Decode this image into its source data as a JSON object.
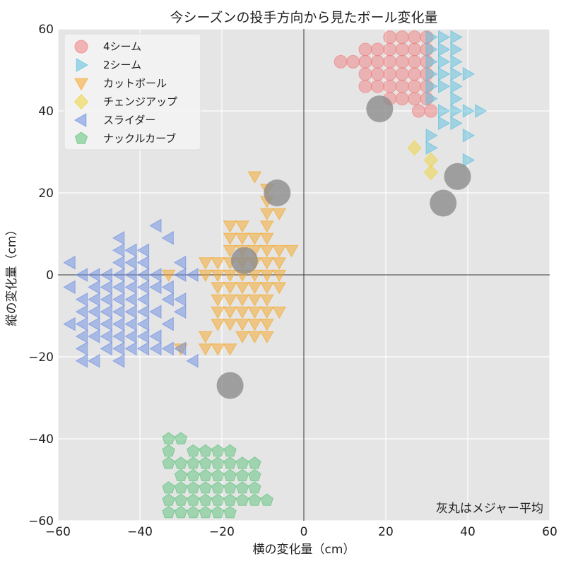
{
  "chart_data": {
    "type": "scatter",
    "title": "今シーズンの投手方向から見たボール変化量",
    "xlabel": "横の変化量（cm）",
    "ylabel": "縦の変化量（cm）",
    "xlim": [
      -60,
      60
    ],
    "ylim": [
      -60,
      60
    ],
    "xticks": [
      "−60",
      "−40",
      "−20",
      "0",
      "20",
      "40",
      "60"
    ],
    "yticks": [
      "60",
      "40",
      "20",
      "0",
      "−20",
      "−40",
      "−60"
    ],
    "grid": true,
    "legend_position": "top-left",
    "annotation": "灰丸はメジャー平均",
    "colors": {
      "background": "#e5e5e5",
      "grid": "#ffffff",
      "axis_line": "#333333",
      "average": "#8c8c8c"
    },
    "series": [
      {
        "name": "4シーム",
        "marker": "circle",
        "color": "#f08080",
        "points": [
          [
            21,
            58
          ],
          [
            24,
            58
          ],
          [
            27,
            58
          ],
          [
            30,
            58
          ],
          [
            15,
            55
          ],
          [
            18,
            55
          ],
          [
            21,
            55
          ],
          [
            24,
            55
          ],
          [
            27,
            55
          ],
          [
            30,
            55
          ],
          [
            9,
            52
          ],
          [
            12,
            52
          ],
          [
            15,
            52
          ],
          [
            18,
            52
          ],
          [
            21,
            52
          ],
          [
            24,
            52
          ],
          [
            27,
            52
          ],
          [
            30,
            52
          ],
          [
            15,
            49
          ],
          [
            18,
            49
          ],
          [
            21,
            49
          ],
          [
            24,
            49
          ],
          [
            27,
            49
          ],
          [
            30,
            49
          ],
          [
            15,
            46
          ],
          [
            18,
            46
          ],
          [
            21,
            46
          ],
          [
            24,
            46
          ],
          [
            27,
            46
          ],
          [
            30,
            46
          ],
          [
            21,
            43
          ],
          [
            24,
            43
          ],
          [
            27,
            43
          ],
          [
            30,
            43
          ],
          [
            28,
            40
          ],
          [
            31,
            40
          ]
        ]
      },
      {
        "name": "2シーム",
        "marker": "triangle-right",
        "color": "#5bc0de",
        "points": [
          [
            31,
            58
          ],
          [
            34,
            58
          ],
          [
            37,
            58
          ],
          [
            31,
            55
          ],
          [
            34,
            55
          ],
          [
            37,
            55
          ],
          [
            31,
            52
          ],
          [
            34,
            52
          ],
          [
            37,
            52
          ],
          [
            31,
            49
          ],
          [
            34,
            49
          ],
          [
            37,
            49
          ],
          [
            40,
            49
          ],
          [
            31,
            46
          ],
          [
            34,
            46
          ],
          [
            37,
            46
          ],
          [
            31,
            43
          ],
          [
            37,
            43
          ],
          [
            34,
            40
          ],
          [
            37,
            40
          ],
          [
            40,
            40
          ],
          [
            43,
            40
          ],
          [
            34,
            37
          ],
          [
            37,
            37
          ],
          [
            31,
            34
          ],
          [
            40,
            34
          ],
          [
            31,
            31
          ],
          [
            40,
            28
          ]
        ]
      },
      {
        "name": "カットボール",
        "marker": "triangle-down",
        "color": "#f5a623",
        "points": [
          [
            -12,
            24
          ],
          [
            -9,
            21
          ],
          [
            -9,
            18
          ],
          [
            -9,
            15
          ],
          [
            -6,
            15
          ],
          [
            -18,
            12
          ],
          [
            -15,
            12
          ],
          [
            -9,
            12
          ],
          [
            -18,
            9
          ],
          [
            -15,
            9
          ],
          [
            -12,
            9
          ],
          [
            -9,
            9
          ],
          [
            -18,
            6
          ],
          [
            -15,
            6
          ],
          [
            -12,
            6
          ],
          [
            -9,
            6
          ],
          [
            -6,
            6
          ],
          [
            -3,
            6
          ],
          [
            -24,
            3
          ],
          [
            -21,
            3
          ],
          [
            -18,
            3
          ],
          [
            -15,
            3
          ],
          [
            -12,
            3
          ],
          [
            -9,
            3
          ],
          [
            -6,
            3
          ],
          [
            -24,
            0
          ],
          [
            -21,
            0
          ],
          [
            -18,
            0
          ],
          [
            -15,
            0
          ],
          [
            -12,
            0
          ],
          [
            -9,
            0
          ],
          [
            -6,
            0
          ],
          [
            -21,
            -3
          ],
          [
            -18,
            -3
          ],
          [
            -15,
            -3
          ],
          [
            -12,
            -3
          ],
          [
            -9,
            -3
          ],
          [
            -6,
            -3
          ],
          [
            -21,
            -6
          ],
          [
            -18,
            -6
          ],
          [
            -15,
            -6
          ],
          [
            -12,
            -6
          ],
          [
            -9,
            -6
          ],
          [
            -21,
            -9
          ],
          [
            -18,
            -9
          ],
          [
            -15,
            -9
          ],
          [
            -12,
            -9
          ],
          [
            -9,
            -9
          ],
          [
            -6,
            -9
          ],
          [
            -21,
            -12
          ],
          [
            -18,
            -12
          ],
          [
            -15,
            -12
          ],
          [
            -12,
            -12
          ],
          [
            -9,
            -12
          ],
          [
            -15,
            -15
          ],
          [
            -12,
            -15
          ],
          [
            -9,
            -15
          ],
          [
            -24,
            -15
          ],
          [
            -24,
            -18
          ],
          [
            -21,
            -18
          ],
          [
            -18,
            -18
          ],
          [
            -33,
            0
          ],
          [
            -30,
            -18
          ]
        ]
      },
      {
        "name": "チェンジアップ",
        "marker": "diamond",
        "color": "#f0d43a",
        "points": [
          [
            27,
            31
          ],
          [
            31,
            28
          ],
          [
            31,
            25
          ]
        ]
      },
      {
        "name": "スライダー",
        "marker": "triangle-left",
        "color": "#6b8de3",
        "points": [
          [
            -36,
            12
          ],
          [
            -33,
            9
          ],
          [
            -45,
            9
          ],
          [
            -45,
            6
          ],
          [
            -42,
            6
          ],
          [
            -39,
            6
          ],
          [
            -45,
            3
          ],
          [
            -42,
            3
          ],
          [
            -39,
            3
          ],
          [
            -30,
            3
          ],
          [
            -57,
            3
          ],
          [
            -54,
            0
          ],
          [
            -51,
            0
          ],
          [
            -48,
            0
          ],
          [
            -45,
            0
          ],
          [
            -42,
            0
          ],
          [
            -39,
            0
          ],
          [
            -36,
            0
          ],
          [
            -30,
            0
          ],
          [
            -27,
            0
          ],
          [
            -57,
            -3
          ],
          [
            -51,
            -3
          ],
          [
            -48,
            -3
          ],
          [
            -45,
            -3
          ],
          [
            -42,
            -3
          ],
          [
            -39,
            -3
          ],
          [
            -36,
            -3
          ],
          [
            -33,
            -3
          ],
          [
            -54,
            -6
          ],
          [
            -51,
            -6
          ],
          [
            -48,
            -6
          ],
          [
            -45,
            -6
          ],
          [
            -42,
            -6
          ],
          [
            -39,
            -6
          ],
          [
            -33,
            -6
          ],
          [
            -30,
            -6
          ],
          [
            -54,
            -9
          ],
          [
            -51,
            -9
          ],
          [
            -48,
            -9
          ],
          [
            -45,
            -9
          ],
          [
            -42,
            -9
          ],
          [
            -39,
            -9
          ],
          [
            -36,
            -9
          ],
          [
            -30,
            -9
          ],
          [
            -57,
            -12
          ],
          [
            -54,
            -12
          ],
          [
            -51,
            -12
          ],
          [
            -48,
            -12
          ],
          [
            -45,
            -12
          ],
          [
            -42,
            -12
          ],
          [
            -39,
            -12
          ],
          [
            -33,
            -12
          ],
          [
            -54,
            -15
          ],
          [
            -51,
            -15
          ],
          [
            -48,
            -15
          ],
          [
            -45,
            -15
          ],
          [
            -42,
            -15
          ],
          [
            -39,
            -15
          ],
          [
            -36,
            -15
          ],
          [
            -54,
            -18
          ],
          [
            -48,
            -18
          ],
          [
            -45,
            -18
          ],
          [
            -42,
            -18
          ],
          [
            -39,
            -18
          ],
          [
            -36,
            -18
          ],
          [
            -33,
            -18
          ],
          [
            -30,
            -18
          ],
          [
            -54,
            -21
          ],
          [
            -51,
            -21
          ],
          [
            -45,
            -21
          ],
          [
            -27,
            -21
          ]
        ]
      },
      {
        "name": "ナックルカーブ",
        "marker": "pentagon",
        "color": "#5cc27a",
        "points": [
          [
            -33,
            -40
          ],
          [
            -30,
            -40
          ],
          [
            -33,
            -43
          ],
          [
            -27,
            -43
          ],
          [
            -24,
            -43
          ],
          [
            -21,
            -43
          ],
          [
            -18,
            -43
          ],
          [
            -33,
            -46
          ],
          [
            -30,
            -46
          ],
          [
            -27,
            -46
          ],
          [
            -24,
            -46
          ],
          [
            -21,
            -46
          ],
          [
            -18,
            -46
          ],
          [
            -15,
            -46
          ],
          [
            -12,
            -46
          ],
          [
            -30,
            -49
          ],
          [
            -27,
            -49
          ],
          [
            -24,
            -49
          ],
          [
            -21,
            -49
          ],
          [
            -18,
            -49
          ],
          [
            -15,
            -49
          ],
          [
            -12,
            -49
          ],
          [
            -33,
            -52
          ],
          [
            -30,
            -52
          ],
          [
            -27,
            -52
          ],
          [
            -24,
            -52
          ],
          [
            -21,
            -52
          ],
          [
            -18,
            -52
          ],
          [
            -15,
            -52
          ],
          [
            -12,
            -52
          ],
          [
            -33,
            -55
          ],
          [
            -30,
            -55
          ],
          [
            -27,
            -55
          ],
          [
            -24,
            -55
          ],
          [
            -21,
            -55
          ],
          [
            -18,
            -55
          ],
          [
            -15,
            -55
          ],
          [
            -12,
            -55
          ],
          [
            -9,
            -55
          ],
          [
            -33,
            -58
          ],
          [
            -30,
            -58
          ],
          [
            -27,
            -58
          ],
          [
            -24,
            -58
          ],
          [
            -21,
            -58
          ],
          [
            -18,
            -58
          ]
        ]
      }
    ],
    "averages": [
      [
        18.5,
        40.5
      ],
      [
        -6.5,
        20
      ],
      [
        37.5,
        24
      ],
      [
        34,
        17.5
      ],
      [
        -14.5,
        3.5
      ],
      [
        -18,
        -27
      ]
    ]
  }
}
